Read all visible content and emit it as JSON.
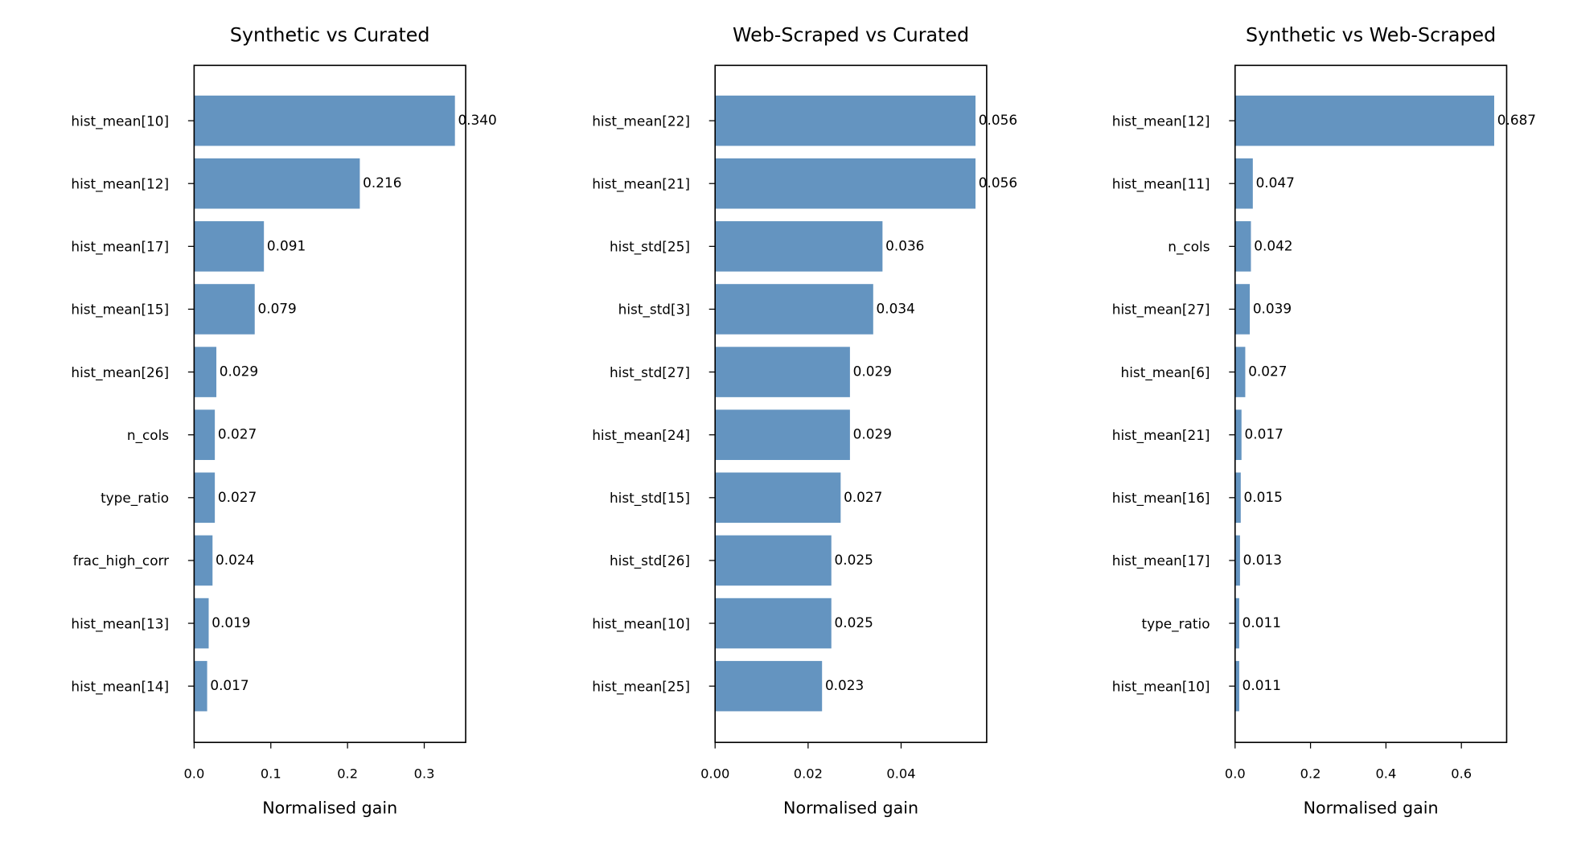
{
  "chart_data": [
    {
      "type": "barh",
      "title": "Synthetic vs Curated",
      "xlabel": "Normalised gain",
      "color": "#6494c0",
      "categories": [
        "hist_mean[10]",
        "hist_mean[12]",
        "hist_mean[17]",
        "hist_mean[15]",
        "hist_mean[26]",
        "n_cols",
        "type_ratio",
        "frac_high_corr",
        "hist_mean[13]",
        "hist_mean[14]"
      ],
      "values": [
        0.34,
        0.216,
        0.091,
        0.079,
        0.029,
        0.027,
        0.027,
        0.024,
        0.019,
        0.017
      ],
      "value_labels": [
        "0.340",
        "0.216",
        "0.091",
        "0.079",
        "0.029",
        "0.027",
        "0.027",
        "0.024",
        "0.019",
        "0.017"
      ],
      "xlim": [
        0,
        0.354
      ],
      "xticks": [
        {
          "value": 0,
          "label": "0.0"
        },
        0.1,
        0.2,
        0.3
      ]
    },
    {
      "type": "barh",
      "title": "Web-Scraped vs Curated",
      "xlabel": "Normalised gain",
      "color": "#6494c0",
      "categories": [
        "hist_mean[22]",
        "hist_mean[21]",
        "hist_std[25]",
        "hist_std[3]",
        "hist_std[27]",
        "hist_mean[24]",
        "hist_std[15]",
        "hist_std[26]",
        "hist_mean[10]",
        "hist_mean[25]"
      ],
      "values": [
        0.056,
        0.056,
        0.036,
        0.034,
        0.029,
        0.029,
        0.027,
        0.025,
        0.025,
        0.023
      ],
      "value_labels": [
        "0.056",
        "0.056",
        "0.036",
        "0.034",
        "0.029",
        "0.029",
        "0.027",
        "0.025",
        "0.025",
        "0.023"
      ],
      "xlim": [
        0,
        0.0584
      ],
      "xticks": [
        {
          "value": 0,
          "label": "0.00"
        },
        {
          "value": 0.02,
          "label": "0.02"
        },
        {
          "value": 0.04,
          "label": "0.04"
        }
      ]
    },
    {
      "type": "barh",
      "title": "Synthetic vs Web-Scraped",
      "xlabel": "Normalised gain",
      "color": "#6494c0",
      "categories": [
        "hist_mean[12]",
        "hist_mean[11]",
        "n_cols",
        "hist_mean[27]",
        "hist_mean[6]",
        "hist_mean[21]",
        "hist_mean[16]",
        "hist_mean[17]",
        "type_ratio",
        "hist_mean[10]"
      ],
      "values": [
        0.687,
        0.047,
        0.042,
        0.039,
        0.027,
        0.017,
        0.015,
        0.013,
        0.011,
        0.011
      ],
      "value_labels": [
        "0.687",
        "0.047",
        "0.042",
        "0.039",
        "0.027",
        "0.017",
        "0.015",
        "0.013",
        "0.011",
        "0.011"
      ],
      "xlim": [
        0,
        0.72
      ],
      "xticks": [
        {
          "value": 0,
          "label": "0.0"
        },
        0.2,
        0.4,
        0.6
      ]
    }
  ]
}
